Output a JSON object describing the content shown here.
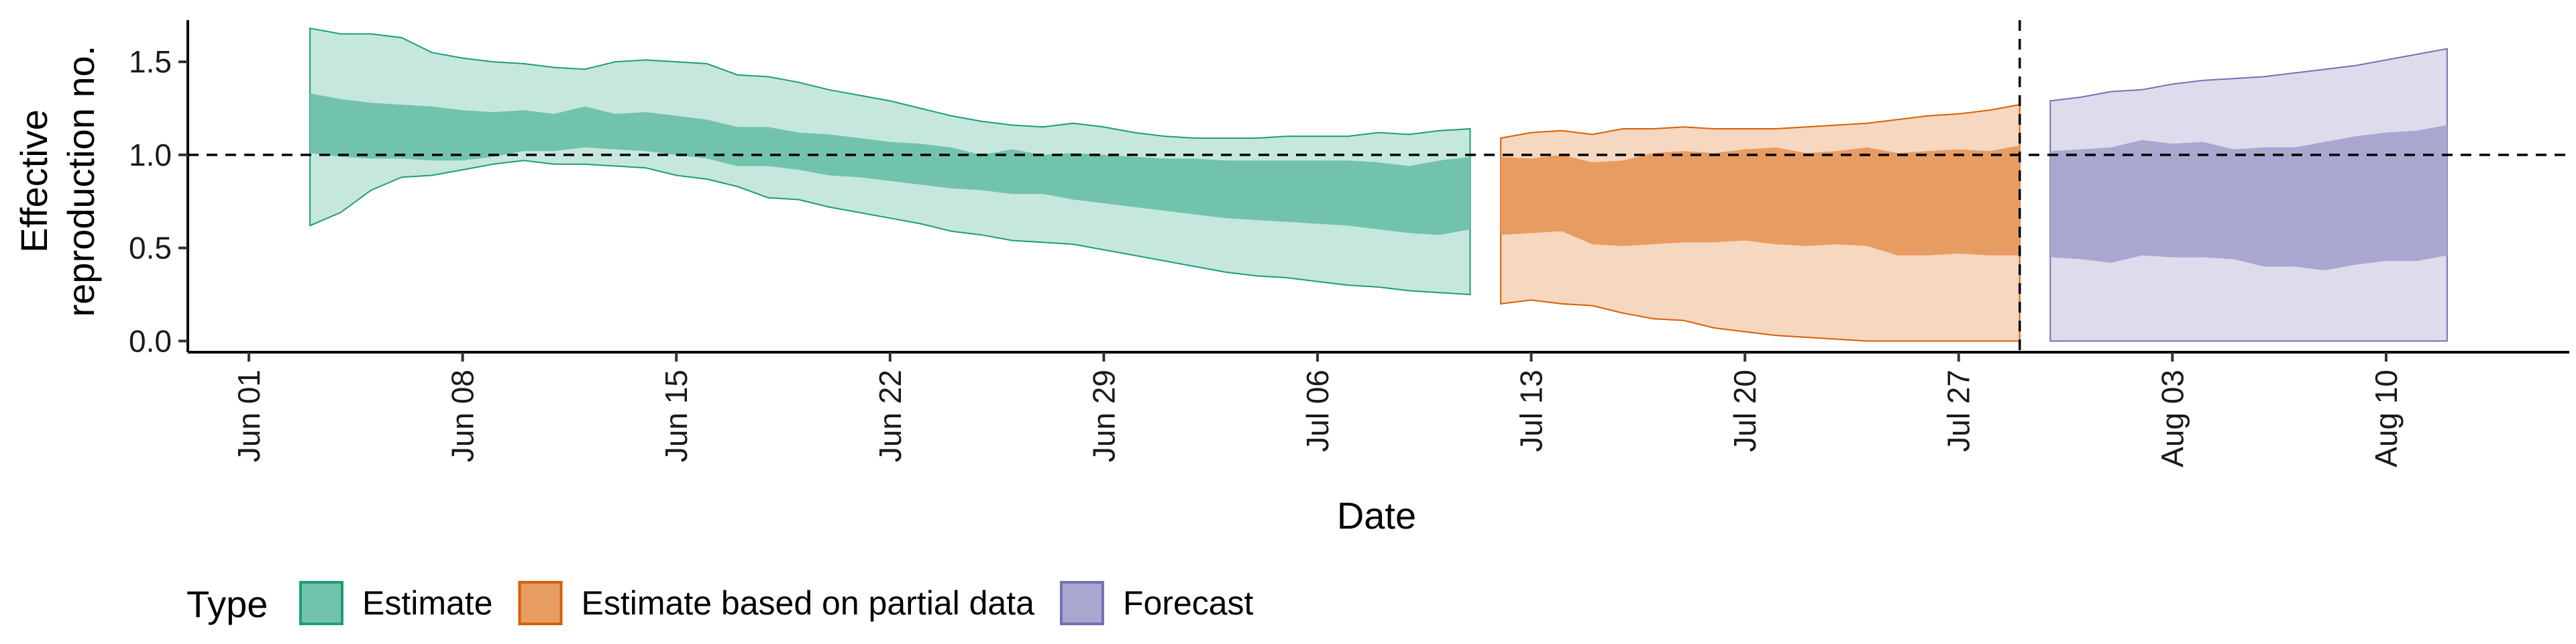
{
  "chart_data": {
    "type": "area",
    "xlabel": "Date",
    "ylabel_lines": [
      "Effective",
      "reproduction no."
    ],
    "x_range": [
      "2020-05-30",
      "2020-08-16"
    ],
    "ylim": [
      -0.06,
      1.76
    ],
    "y_ticks": [
      0.0,
      0.5,
      1.0,
      1.5
    ],
    "y_tick_labels": [
      "0.0",
      "0.5",
      "1.0",
      "1.5"
    ],
    "x_ticks": [
      "2020-06-01",
      "2020-06-08",
      "2020-06-15",
      "2020-06-22",
      "2020-06-29",
      "2020-07-06",
      "2020-07-13",
      "2020-07-20",
      "2020-07-27",
      "2020-08-03",
      "2020-08-10"
    ],
    "x_tick_labels": [
      "Jun 01",
      "Jun 08",
      "Jun 15",
      "Jun 22",
      "Jun 29",
      "Jul 06",
      "Jul 13",
      "Jul 20",
      "Jul 27",
      "Aug 03",
      "Aug 10"
    ],
    "reference_line_y": 1.0,
    "vertical_line_x": "2020-07-29",
    "grid": false,
    "legend": {
      "title": "Type",
      "placement": "bottom",
      "entries": [
        "Estimate",
        "Estimate based on partial data",
        "Forecast"
      ]
    },
    "series": [
      {
        "name": "Estimate",
        "fill": "#1b9e77",
        "x": [
          "2020-06-03",
          "2020-06-04",
          "2020-06-05",
          "2020-06-06",
          "2020-06-07",
          "2020-06-08",
          "2020-06-09",
          "2020-06-10",
          "2020-06-11",
          "2020-06-12",
          "2020-06-13",
          "2020-06-14",
          "2020-06-15",
          "2020-06-16",
          "2020-06-17",
          "2020-06-18",
          "2020-06-19",
          "2020-06-20",
          "2020-06-21",
          "2020-06-22",
          "2020-06-23",
          "2020-06-24",
          "2020-06-25",
          "2020-06-26",
          "2020-06-27",
          "2020-06-28",
          "2020-06-29",
          "2020-06-30",
          "2020-07-01",
          "2020-07-02",
          "2020-07-03",
          "2020-07-04",
          "2020-07-05",
          "2020-07-06",
          "2020-07-07",
          "2020-07-08",
          "2020-07-09",
          "2020-07-10",
          "2020-07-11"
        ],
        "upper_90": [
          1.68,
          1.65,
          1.65,
          1.63,
          1.55,
          1.52,
          1.5,
          1.49,
          1.47,
          1.46,
          1.5,
          1.51,
          1.5,
          1.49,
          1.43,
          1.42,
          1.39,
          1.35,
          1.32,
          1.29,
          1.25,
          1.21,
          1.18,
          1.16,
          1.15,
          1.17,
          1.15,
          1.12,
          1.1,
          1.09,
          1.09,
          1.09,
          1.1,
          1.1,
          1.1,
          1.12,
          1.11,
          1.13,
          1.14
        ],
        "upper_50": [
          1.33,
          1.3,
          1.28,
          1.27,
          1.26,
          1.24,
          1.23,
          1.24,
          1.22,
          1.26,
          1.22,
          1.23,
          1.21,
          1.19,
          1.15,
          1.15,
          1.12,
          1.11,
          1.09,
          1.07,
          1.06,
          1.04,
          1.0,
          1.03,
          1.0,
          1.01,
          1.0,
          0.99,
          0.98,
          0.98,
          0.97,
          0.97,
          0.97,
          0.97,
          0.97,
          0.96,
          0.94,
          0.97,
          0.99
        ],
        "lower_50": [
          1.01,
          0.99,
          0.98,
          0.98,
          0.97,
          0.97,
          0.99,
          1.02,
          1.02,
          1.04,
          1.03,
          1.02,
          1.0,
          0.98,
          0.94,
          0.94,
          0.92,
          0.89,
          0.88,
          0.86,
          0.84,
          0.82,
          0.81,
          0.79,
          0.79,
          0.76,
          0.74,
          0.72,
          0.7,
          0.68,
          0.66,
          0.65,
          0.64,
          0.63,
          0.62,
          0.6,
          0.58,
          0.57,
          0.6
        ],
        "lower_90": [
          0.62,
          0.69,
          0.81,
          0.88,
          0.89,
          0.92,
          0.95,
          0.97,
          0.95,
          0.95,
          0.94,
          0.93,
          0.89,
          0.87,
          0.83,
          0.77,
          0.76,
          0.72,
          0.69,
          0.66,
          0.63,
          0.59,
          0.57,
          0.54,
          0.53,
          0.52,
          0.49,
          0.46,
          0.43,
          0.4,
          0.37,
          0.35,
          0.34,
          0.32,
          0.3,
          0.29,
          0.27,
          0.26,
          0.25
        ]
      },
      {
        "name": "Estimate based on partial data",
        "fill": "#d95f02",
        "x": [
          "2020-07-12",
          "2020-07-13",
          "2020-07-14",
          "2020-07-15",
          "2020-07-16",
          "2020-07-17",
          "2020-07-18",
          "2020-07-19",
          "2020-07-20",
          "2020-07-21",
          "2020-07-22",
          "2020-07-23",
          "2020-07-24",
          "2020-07-25",
          "2020-07-26",
          "2020-07-27",
          "2020-07-28",
          "2020-07-29"
        ],
        "upper_90": [
          1.09,
          1.12,
          1.13,
          1.11,
          1.14,
          1.14,
          1.15,
          1.14,
          1.14,
          1.14,
          1.15,
          1.16,
          1.17,
          1.19,
          1.21,
          1.22,
          1.24,
          1.27
        ],
        "upper_50": [
          0.99,
          0.98,
          1.0,
          0.96,
          0.97,
          1.01,
          1.02,
          1.01,
          1.03,
          1.04,
          1.01,
          1.02,
          1.04,
          1.01,
          1.02,
          1.03,
          1.02,
          1.05
        ],
        "lower_50": [
          0.57,
          0.58,
          0.59,
          0.52,
          0.51,
          0.52,
          0.53,
          0.53,
          0.54,
          0.52,
          0.51,
          0.52,
          0.51,
          0.46,
          0.46,
          0.47,
          0.46,
          0.46
        ],
        "lower_90": [
          0.2,
          0.22,
          0.2,
          0.19,
          0.15,
          0.12,
          0.11,
          0.07,
          0.05,
          0.03,
          0.02,
          0.01,
          0.0,
          0.0,
          0.0,
          0.0,
          0.0,
          0.0
        ]
      },
      {
        "name": "Forecast",
        "fill": "#7570b3",
        "x": [
          "2020-07-30",
          "2020-07-31",
          "2020-08-01",
          "2020-08-02",
          "2020-08-03",
          "2020-08-04",
          "2020-08-05",
          "2020-08-06",
          "2020-08-07",
          "2020-08-08",
          "2020-08-09",
          "2020-08-10",
          "2020-08-11",
          "2020-08-12"
        ],
        "upper_90": [
          1.29,
          1.31,
          1.34,
          1.35,
          1.38,
          1.4,
          1.41,
          1.42,
          1.44,
          1.46,
          1.48,
          1.51,
          1.54,
          1.57
        ],
        "upper_50": [
          1.02,
          1.03,
          1.04,
          1.08,
          1.06,
          1.07,
          1.03,
          1.04,
          1.04,
          1.07,
          1.1,
          1.12,
          1.13,
          1.16
        ],
        "lower_50": [
          0.45,
          0.44,
          0.42,
          0.46,
          0.45,
          0.45,
          0.44,
          0.4,
          0.4,
          0.38,
          0.41,
          0.43,
          0.43,
          0.46
        ],
        "lower_90": [
          0.0,
          0.0,
          0.0,
          0.0,
          0.0,
          0.0,
          0.0,
          0.0,
          0.0,
          0.0,
          0.0,
          0.0,
          0.0,
          0.0
        ]
      }
    ]
  }
}
